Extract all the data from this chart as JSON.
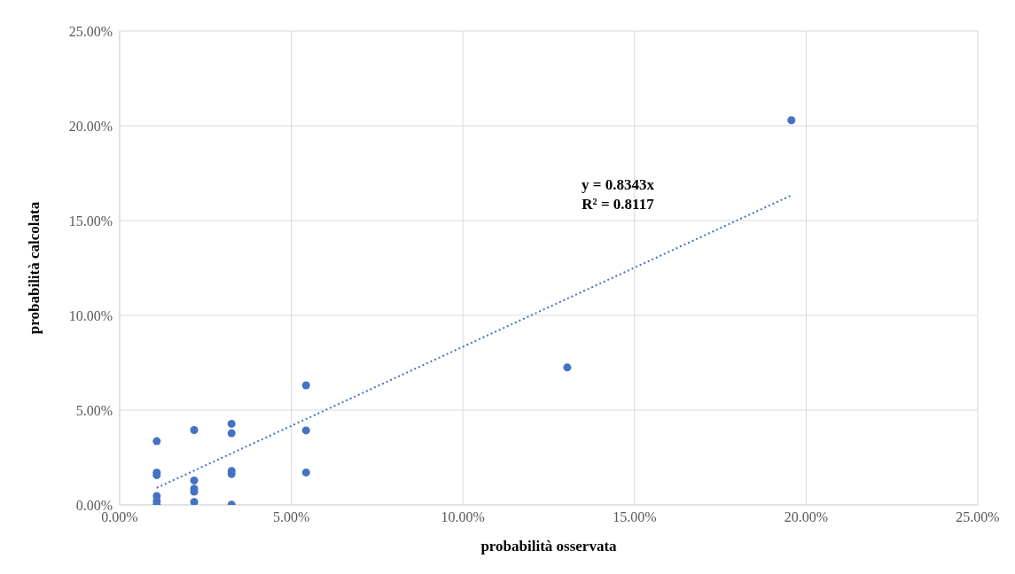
{
  "chart_data": {
    "type": "scatter",
    "xlabel": "probabilità osservata",
    "ylabel": "probabilità calcolata",
    "series": [
      {
        "type": "scatter",
        "color": "#4472c4",
        "marker": "circle",
        "x": [
          1.08,
          1.08,
          1.08,
          1.08,
          1.08,
          1.08,
          2.17,
          2.17,
          2.17,
          2.17,
          2.17,
          3.26,
          3.26,
          3.26,
          3.26,
          3.26,
          5.43,
          5.43,
          5.43,
          13.04,
          19.57
        ],
        "values": [
          3.36,
          1.71,
          1.57,
          0.47,
          0.2,
          0.02,
          3.95,
          1.29,
          0.85,
          0.7,
          0.15,
          4.28,
          3.78,
          1.79,
          1.63,
          0.01,
          6.31,
          3.93,
          1.71,
          7.25,
          20.29
        ]
      },
      {
        "type": "line",
        "color": "#4472c4",
        "marker": "none",
        "line_style": "dotted",
        "x": [
          1.08,
          19.57
        ],
        "values": [
          0.9,
          16.33
        ]
      }
    ],
    "annotations": [
      "y = 0.8343x\nR² = 0.8117"
    ],
    "xlim": [
      0,
      25
    ],
    "ylim": [
      0,
      25
    ],
    "xticks": [
      {
        "value": 0,
        "label": "0.00%"
      },
      {
        "value": 5,
        "label": "5.00%"
      },
      {
        "value": 10,
        "label": "10.00%"
      },
      {
        "value": 15,
        "label": "15.00%"
      },
      {
        "value": 20,
        "label": "20.00%"
      },
      {
        "value": 25,
        "label": "25.00%"
      }
    ],
    "yticks": [
      {
        "value": 0,
        "label": "0.00%"
      },
      {
        "value": 5,
        "label": "5.00%"
      },
      {
        "value": 10,
        "label": "10.00%"
      },
      {
        "value": 15,
        "label": "15.00%"
      },
      {
        "value": 20,
        "label": "20.00%"
      },
      {
        "value": 25,
        "label": "25.00%"
      }
    ],
    "grid": true
  }
}
